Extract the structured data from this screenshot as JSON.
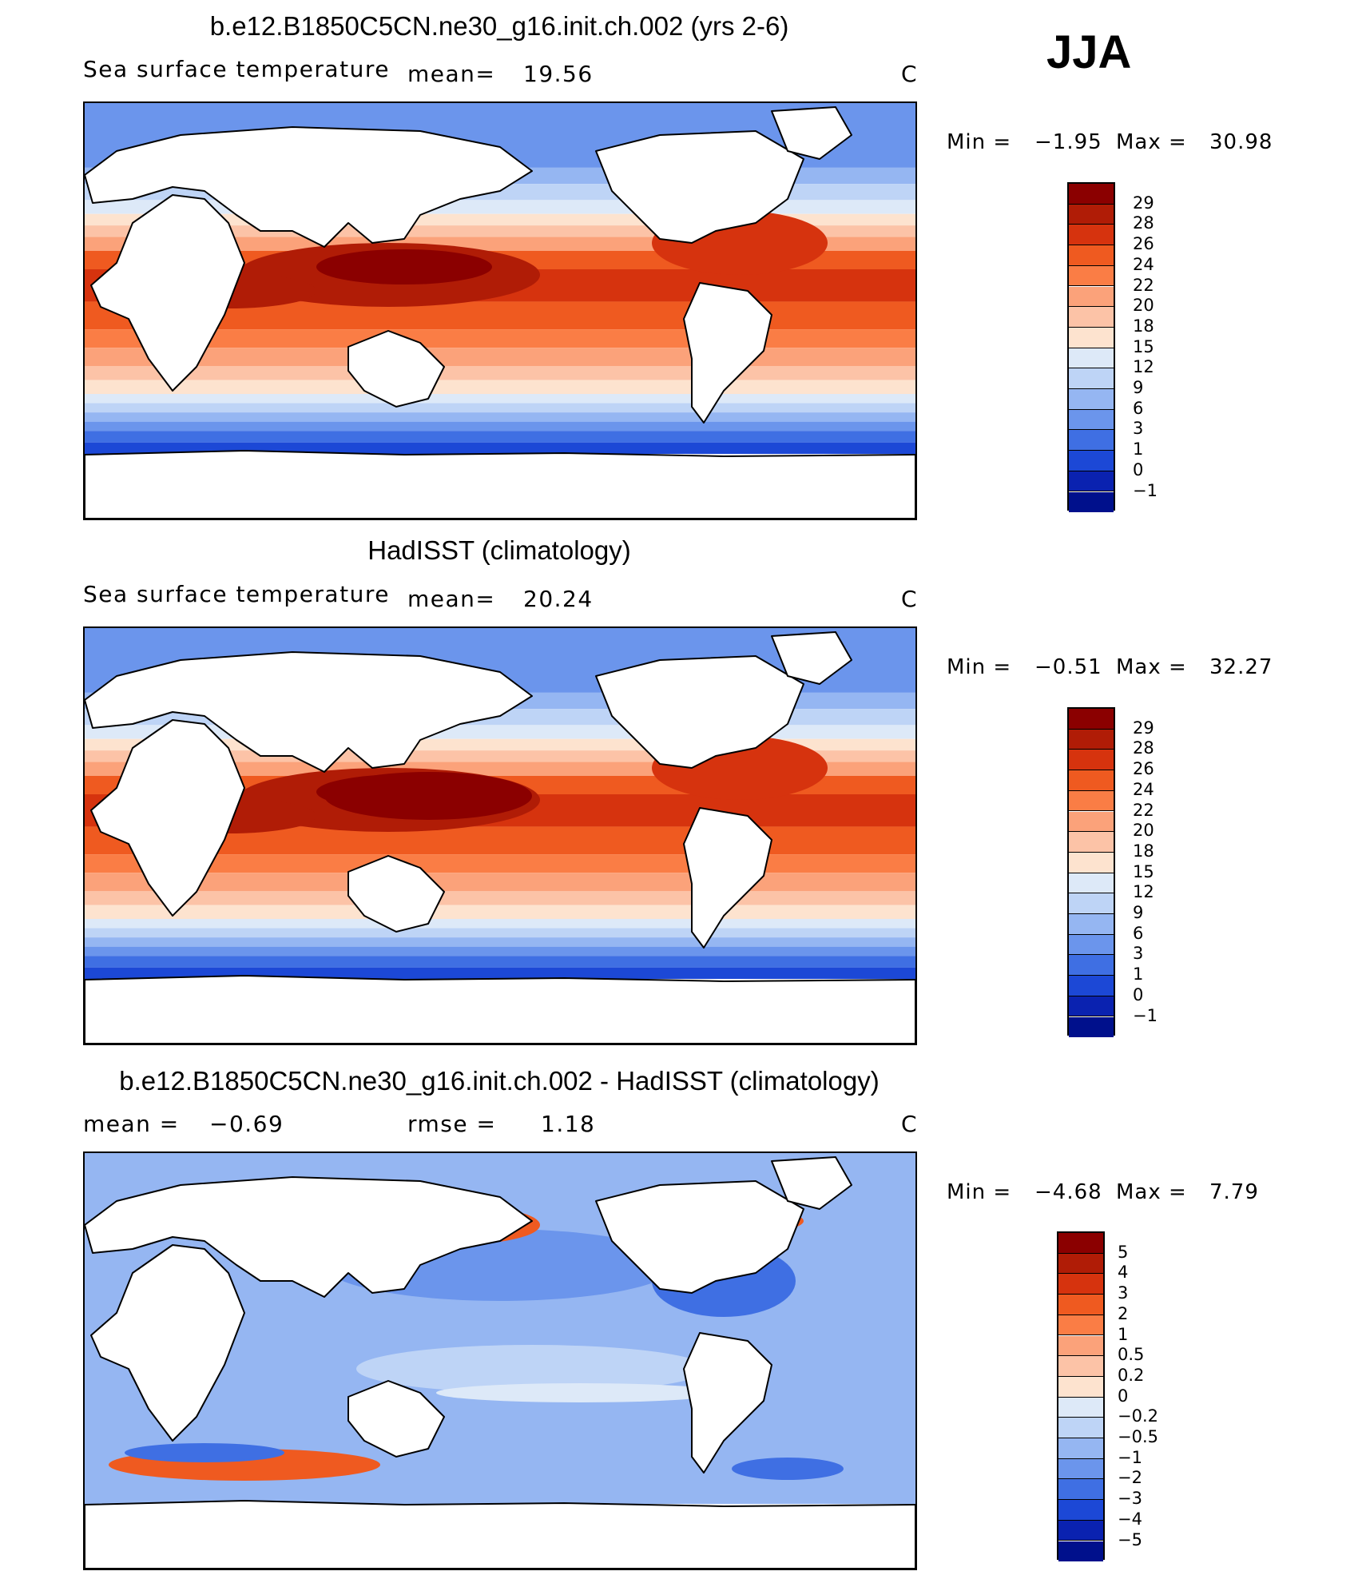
{
  "season_label": "JJA",
  "unit_label": "C",
  "panels": [
    {
      "title": "b.e12.B1850C5CN.ne30_g16.init.ch.002 (yrs 2-6)",
      "left_label": "Sea surface temperature",
      "stat_label": "mean=",
      "stat_value": "19.56",
      "unit": "C",
      "min_label": "Min =",
      "min_value": "−1.95",
      "max_label": "Max =",
      "max_value": "30.98"
    },
    {
      "title": "HadISST (climatology)",
      "left_label": "Sea surface temperature",
      "stat_label": "mean=",
      "stat_value": "20.24",
      "unit": "C",
      "min_label": "Min =",
      "min_value": "−0.51",
      "max_label": "Max =",
      "max_value": "32.27"
    },
    {
      "title": "b.e12.B1850C5CN.ne30_g16.init.ch.002 - HadISST (climatology)",
      "left_label": "mean =",
      "left_value": "−0.69",
      "stat_label": "rmse =",
      "stat_value": "1.18",
      "unit": "C",
      "min_label": "Min =",
      "min_value": "−4.68",
      "max_label": "Max =",
      "max_value": "7.79"
    }
  ],
  "colorbars": {
    "sst": {
      "labels": [
        "29",
        "28",
        "26",
        "24",
        "22",
        "20",
        "18",
        "15",
        "12",
        "9",
        "6",
        "3",
        "1",
        "0",
        "−1"
      ],
      "colors": [
        "#8b0000",
        "#b01c06",
        "#d6330e",
        "#ef5a20",
        "#fa7d45",
        "#fba27a",
        "#fcc3a7",
        "#fde3cf",
        "#dde9f8",
        "#bed4f6",
        "#95b6f2",
        "#6b95ec",
        "#3f6fe3",
        "#1c48d6",
        "#0a22b0",
        "#00108c"
      ]
    },
    "diff": {
      "labels": [
        "5",
        "4",
        "3",
        "2",
        "1",
        "0.5",
        "0.2",
        "0",
        "−0.2",
        "−0.5",
        "−1",
        "−2",
        "−3",
        "−4",
        "−5"
      ],
      "colors": [
        "#8b0000",
        "#b01c06",
        "#d6330e",
        "#ef5a20",
        "#fa7d45",
        "#fba27a",
        "#fcc3a7",
        "#fde3cf",
        "#dde9f8",
        "#bed4f6",
        "#95b6f2",
        "#6b95ec",
        "#3f6fe3",
        "#1c48d6",
        "#0a22b0",
        "#00108c"
      ]
    }
  },
  "map_colors": {
    "land": "#ffffff",
    "coast": "#000000",
    "warm_pool": "#8b0000",
    "tropics": "#d6330e",
    "subtropics": "#fa7d45",
    "midlat": "#fcc3a7",
    "cool": "#bed4f6",
    "cold": "#6b95ec",
    "polar": "#1c48d6"
  }
}
